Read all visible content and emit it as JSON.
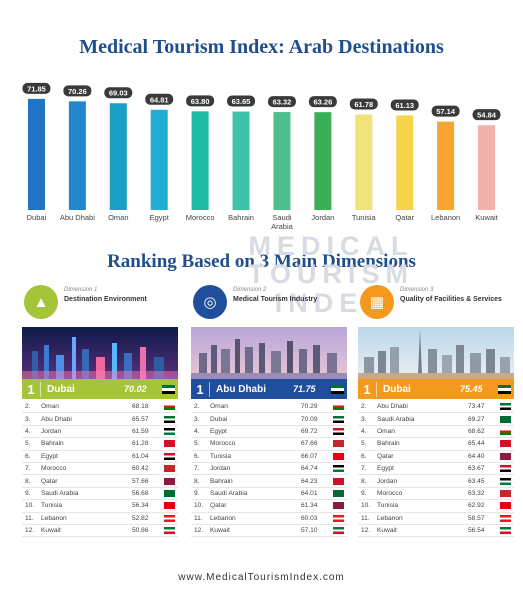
{
  "main_title": "Medical Tourism Index: Arab Destinations",
  "sub_title": "Ranking Based on 3 Main Dimensions",
  "watermark": [
    "MEDICAL",
    "TOURISM",
    "INDEX"
  ],
  "footer": "www.MedicalTourismIndex.com",
  "chart_data": {
    "type": "bar",
    "categories": [
      "Dubai",
      "Abu Dhabi",
      "Oman",
      "Egypt",
      "Morocco",
      "Bahrain",
      "Saudi Arabia",
      "Jordan",
      "Tunisia",
      "Qatar",
      "Lebanon",
      "Kuwait"
    ],
    "values": [
      71.85,
      70.26,
      69.03,
      64.81,
      63.8,
      63.65,
      63.32,
      63.26,
      61.78,
      61.13,
      57.14,
      54.84
    ],
    "value_labels": [
      "71.85",
      "70.26",
      "69.03",
      "64.81",
      "63.80",
      "63.65",
      "63.32",
      "63.26",
      "61.78",
      "61.13",
      "57.14",
      "54.84"
    ],
    "bar_colors": [
      "#1f74c6",
      "#2386cf",
      "#1aa0c4",
      "#21acd6",
      "#1fb9a6",
      "#3dc4a6",
      "#4cbf8c",
      "#3aaf57",
      "#f1e27a",
      "#f6d44a",
      "#f6a52e",
      "#f2b2ac"
    ],
    "ylim": [
      0,
      75
    ],
    "grid": false
  },
  "dimensions": [
    {
      "number_label": "Dimension 1",
      "name": "Destination Environment",
      "icon": "cityscape-icon",
      "accent": "#a6c43a",
      "top": {
        "rank": "1",
        "name": "Dubai",
        "score": "70.02"
      },
      "rows": [
        {
          "rank": "2.",
          "name": "Oman",
          "score": "68.18"
        },
        {
          "rank": "3.",
          "name": "Abu Dhabi",
          "score": "65.57"
        },
        {
          "rank": "4.",
          "name": "Jordan",
          "score": "61.59"
        },
        {
          "rank": "5.",
          "name": "Bahrain",
          "score": "61.28"
        },
        {
          "rank": "6.",
          "name": "Egypt",
          "score": "61.04"
        },
        {
          "rank": "7.",
          "name": "Morocco",
          "score": "60.42"
        },
        {
          "rank": "8.",
          "name": "Qatar",
          "score": "57.66"
        },
        {
          "rank": "9.",
          "name": "Saudi Arabia",
          "score": "56.68"
        },
        {
          "rank": "10.",
          "name": "Tunisia",
          "score": "56.34"
        },
        {
          "rank": "11.",
          "name": "Lebanon",
          "score": "52.82"
        },
        {
          "rank": "12.",
          "name": "Kuwait",
          "score": "50.86"
        }
      ]
    },
    {
      "number_label": "Dimension 2",
      "name": "Medical Tourism Industry",
      "icon": "globe-icon",
      "accent": "#1f4e9c",
      "top": {
        "rank": "1",
        "name": "Abu Dhabi",
        "score": "71.75"
      },
      "rows": [
        {
          "rank": "2.",
          "name": "Oman",
          "score": "70.29"
        },
        {
          "rank": "3.",
          "name": "Dubai",
          "score": "70.09"
        },
        {
          "rank": "4.",
          "name": "Egypt",
          "score": "69.72"
        },
        {
          "rank": "5.",
          "name": "Morocco",
          "score": "67.66"
        },
        {
          "rank": "6.",
          "name": "Tunisia",
          "score": "66.07"
        },
        {
          "rank": "7.",
          "name": "Jordan",
          "score": "64.74"
        },
        {
          "rank": "8.",
          "name": "Bahrain",
          "score": "64.23"
        },
        {
          "rank": "9.",
          "name": "Saudi Arabia",
          "score": "64.01"
        },
        {
          "rank": "10.",
          "name": "Qatar",
          "score": "61.34"
        },
        {
          "rank": "11.",
          "name": "Lebanon",
          "score": "60.03"
        },
        {
          "rank": "12.",
          "name": "Kuwait",
          "score": "57.10"
        }
      ]
    },
    {
      "number_label": "Dimension 3",
      "name": "Quality of Facilities & Services",
      "icon": "building-icon",
      "accent": "#f39a1e",
      "top": {
        "rank": "1",
        "name": "Dubai",
        "score": "75.45"
      },
      "rows": [
        {
          "rank": "2.",
          "name": "Abu Dhabi",
          "score": "73.47"
        },
        {
          "rank": "3.",
          "name": "Saudi Arabia",
          "score": "69.27"
        },
        {
          "rank": "4.",
          "name": "Oman",
          "score": "68.62"
        },
        {
          "rank": "5.",
          "name": "Bahrain",
          "score": "65.44"
        },
        {
          "rank": "6.",
          "name": "Qatar",
          "score": "64.40"
        },
        {
          "rank": "7.",
          "name": "Egypt",
          "score": "63.67"
        },
        {
          "rank": "8.",
          "name": "Jordan",
          "score": "63.45"
        },
        {
          "rank": "9.",
          "name": "Morocco",
          "score": "63.32"
        },
        {
          "rank": "10.",
          "name": "Tunisia",
          "score": "62.92"
        },
        {
          "rank": "11.",
          "name": "Lebanon",
          "score": "58.57"
        },
        {
          "rank": "12.",
          "name": "Kuwait",
          "score": "56.54"
        }
      ]
    }
  ],
  "flags": {
    "Dubai": [
      "#00732f",
      "#ffffff",
      "#000000",
      "#ff0000"
    ],
    "Abu Dhabi": [
      "#00732f",
      "#ffffff",
      "#000000",
      "#ff0000"
    ],
    "Oman": [
      "#ffffff",
      "#db161b",
      "#008000",
      "#db161b"
    ],
    "Jordan": [
      "#000000",
      "#ffffff",
      "#007a3d",
      "#ce1126"
    ],
    "Bahrain": [
      "#ce1126",
      "#ce1126",
      "#ce1126",
      "#ffffff"
    ],
    "Egypt": [
      "#ce1126",
      "#ffffff",
      "#000000",
      "#ce1126"
    ],
    "Morocco": [
      "#c1272d",
      "#c1272d",
      "#c1272d",
      "#c1272d"
    ],
    "Qatar": [
      "#8d1b3d",
      "#8d1b3d",
      "#8d1b3d",
      "#ffffff"
    ],
    "Saudi Arabia": [
      "#006c35",
      "#006c35",
      "#006c35",
      "#006c35"
    ],
    "Tunisia": [
      "#e70013",
      "#e70013",
      "#e70013",
      "#e70013"
    ],
    "Lebanon": [
      "#ee161f",
      "#ffffff",
      "#ee161f",
      "#ee161f"
    ],
    "Kuwait": [
      "#007a3d",
      "#ffffff",
      "#ce1126",
      "#000000"
    ]
  }
}
